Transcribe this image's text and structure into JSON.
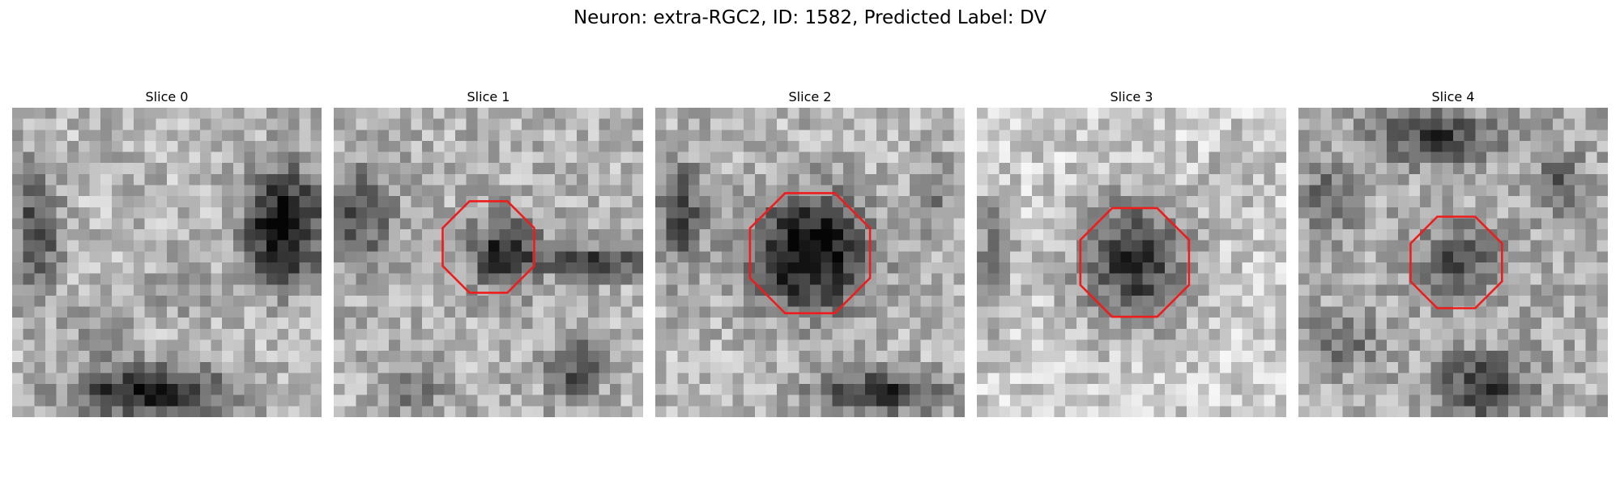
{
  "figure": {
    "title": "Neuron: extra-RGC2, ID: 1582, Predicted Label: DV"
  },
  "slices": [
    {
      "title": "Slice 0",
      "has_contour": false,
      "blobs": [
        [
          0.88,
          0.38,
          0.12,
          0.18,
          0.75
        ],
        [
          0.45,
          0.92,
          0.25,
          0.08,
          0.65
        ],
        [
          0.08,
          0.4,
          0.07,
          0.22,
          0.45
        ],
        [
          0.3,
          0.7,
          0.1,
          0.1,
          0.2
        ],
        [
          0.55,
          0.55,
          0.08,
          0.12,
          0.18
        ]
      ],
      "base": 0.72,
      "seed": 11
    },
    {
      "title": "Slice 1",
      "has_contour": true,
      "contour_center": [
        0.5,
        0.45
      ],
      "contour_radius": 0.16,
      "blobs": [
        [
          0.55,
          0.47,
          0.11,
          0.11,
          0.55
        ],
        [
          0.85,
          0.5,
          0.14,
          0.05,
          0.55
        ],
        [
          0.08,
          0.35,
          0.1,
          0.15,
          0.4
        ],
        [
          0.78,
          0.85,
          0.08,
          0.1,
          0.4
        ],
        [
          0.25,
          0.9,
          0.1,
          0.06,
          0.3
        ]
      ],
      "base": 0.7,
      "seed": 23
    },
    {
      "title": "Slice 2",
      "has_contour": true,
      "contour_center": [
        0.5,
        0.47
      ],
      "contour_radius": 0.21,
      "blobs": [
        [
          0.5,
          0.47,
          0.19,
          0.18,
          0.75
        ],
        [
          0.08,
          0.35,
          0.08,
          0.18,
          0.4
        ],
        [
          0.72,
          0.92,
          0.2,
          0.07,
          0.55
        ],
        [
          0.9,
          0.3,
          0.07,
          0.12,
          0.25
        ]
      ],
      "base": 0.72,
      "seed": 37
    },
    {
      "title": "Slice 3",
      "has_contour": true,
      "contour_center": [
        0.51,
        0.5
      ],
      "contour_radius": 0.19,
      "blobs": [
        [
          0.51,
          0.5,
          0.18,
          0.2,
          0.6
        ],
        [
          0.05,
          0.5,
          0.06,
          0.2,
          0.35
        ],
        [
          0.85,
          0.2,
          0.08,
          0.1,
          0.15
        ]
      ],
      "base": 0.8,
      "seed": 51
    },
    {
      "title": "Slice 4",
      "has_contour": true,
      "contour_center": [
        0.51,
        0.5
      ],
      "contour_radius": 0.16,
      "blobs": [
        [
          0.51,
          0.5,
          0.12,
          0.12,
          0.35
        ],
        [
          0.45,
          0.1,
          0.2,
          0.08,
          0.45
        ],
        [
          0.6,
          0.9,
          0.14,
          0.1,
          0.5
        ],
        [
          0.1,
          0.3,
          0.08,
          0.1,
          0.3
        ],
        [
          0.85,
          0.25,
          0.08,
          0.1,
          0.3
        ],
        [
          0.15,
          0.75,
          0.1,
          0.1,
          0.25
        ]
      ],
      "base": 0.68,
      "seed": 67
    }
  ],
  "style": {
    "contour_color": "#ee1c1c"
  }
}
